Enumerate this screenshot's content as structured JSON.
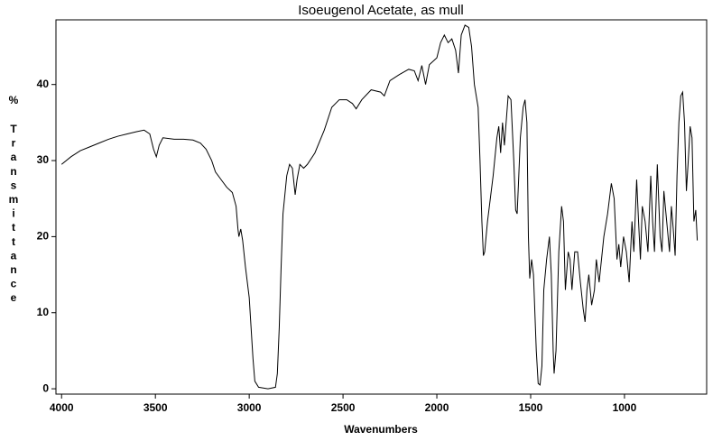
{
  "chart_data": {
    "type": "line",
    "title": "Isoeugenol Acetate, as mull",
    "xlabel": "Wavenumbers",
    "ylabel": "% Transmittance",
    "color": "#000000",
    "xlim": [
      4030,
      562
    ],
    "ylim": [
      -0.7,
      48.5
    ],
    "xticks": [
      4000,
      3500,
      3000,
      2500,
      2000,
      1500,
      1000
    ],
    "yticks": [
      0,
      10,
      20,
      30,
      40
    ],
    "x": [
      4000,
      3950,
      3900,
      3850,
      3800,
      3750,
      3700,
      3650,
      3600,
      3560,
      3530,
      3510,
      3495,
      3480,
      3460,
      3400,
      3350,
      3300,
      3260,
      3230,
      3200,
      3180,
      3150,
      3120,
      3090,
      3070,
      3060,
      3055,
      3045,
      3035,
      3020,
      3000,
      2990,
      2980,
      2970,
      2950,
      2900,
      2860,
      2850,
      2840,
      2830,
      2820,
      2800,
      2785,
      2770,
      2755,
      2745,
      2730,
      2710,
      2690,
      2650,
      2600,
      2560,
      2520,
      2480,
      2450,
      2430,
      2400,
      2350,
      2300,
      2280,
      2250,
      2200,
      2150,
      2120,
      2100,
      2080,
      2060,
      2040,
      2000,
      1980,
      1960,
      1940,
      1920,
      1900,
      1885,
      1870,
      1850,
      1830,
      1815,
      1800,
      1780,
      1770,
      1760,
      1752,
      1745,
      1730,
      1700,
      1680,
      1670,
      1660,
      1650,
      1640,
      1620,
      1605,
      1590,
      1580,
      1572,
      1565,
      1555,
      1540,
      1530,
      1520,
      1512,
      1505,
      1495,
      1485,
      1470,
      1460,
      1450,
      1440,
      1430,
      1415,
      1400,
      1390,
      1380,
      1375,
      1365,
      1350,
      1335,
      1325,
      1315,
      1300,
      1290,
      1280,
      1265,
      1250,
      1235,
      1220,
      1210,
      1200,
      1190,
      1175,
      1160,
      1150,
      1135,
      1110,
      1090,
      1070,
      1055,
      1040,
      1030,
      1020,
      1005,
      990,
      975,
      960,
      950,
      935,
      925,
      915,
      905,
      890,
      875,
      860,
      850,
      840,
      825,
      810,
      800,
      790,
      775,
      760,
      750,
      740,
      730,
      720,
      710,
      700,
      690,
      680,
      670,
      660,
      650,
      640,
      630,
      620,
      612
    ],
    "values": [
      29.5,
      30.5,
      31.3,
      31.8,
      32.3,
      32.8,
      33.2,
      33.5,
      33.8,
      34.0,
      33.5,
      31.5,
      30.5,
      32,
      33,
      32.8,
      32.8,
      32.7,
      32.3,
      31.5,
      30,
      28.5,
      27.5,
      26.5,
      25.8,
      24,
      21,
      20,
      21,
      19.5,
      16,
      12,
      8,
      4,
      1,
      0.2,
      0,
      0.2,
      2,
      8,
      16,
      23,
      28,
      29.5,
      29,
      25.5,
      27.5,
      29.5,
      29,
      29.5,
      31,
      34,
      37,
      38,
      38,
      37.5,
      36.8,
      38,
      39.3,
      39,
      38.5,
      40.5,
      41.3,
      42,
      41.8,
      40.5,
      42.5,
      40,
      42.6,
      43.5,
      45.5,
      46.5,
      45.5,
      46,
      44.5,
      41.5,
      46.5,
      47.8,
      47.5,
      45,
      40,
      37,
      30,
      22,
      17.5,
      18,
      22,
      28,
      33,
      34.5,
      31,
      35,
      32,
      38.5,
      38,
      30,
      23.5,
      23,
      27,
      33,
      37,
      38,
      35,
      20,
      14.5,
      17,
      15,
      5,
      0.7,
      0.5,
      3,
      13,
      17,
      20,
      15,
      5,
      2,
      5,
      18,
      24,
      22,
      13,
      18,
      17,
      13,
      18,
      18,
      14,
      10.5,
      8.8,
      13,
      15,
      11,
      13,
      17,
      14,
      20,
      23,
      27,
      25,
      17,
      19,
      16,
      20,
      18,
      14,
      22,
      18,
      27.5,
      22,
      17,
      24,
      22,
      18,
      28,
      22,
      18,
      29.5,
      20,
      18,
      26,
      22,
      18,
      24,
      21,
      17.5,
      28,
      35,
      38.5,
      39,
      35,
      26,
      30,
      34.5,
      33,
      22,
      23.5,
      19.5
    ]
  }
}
